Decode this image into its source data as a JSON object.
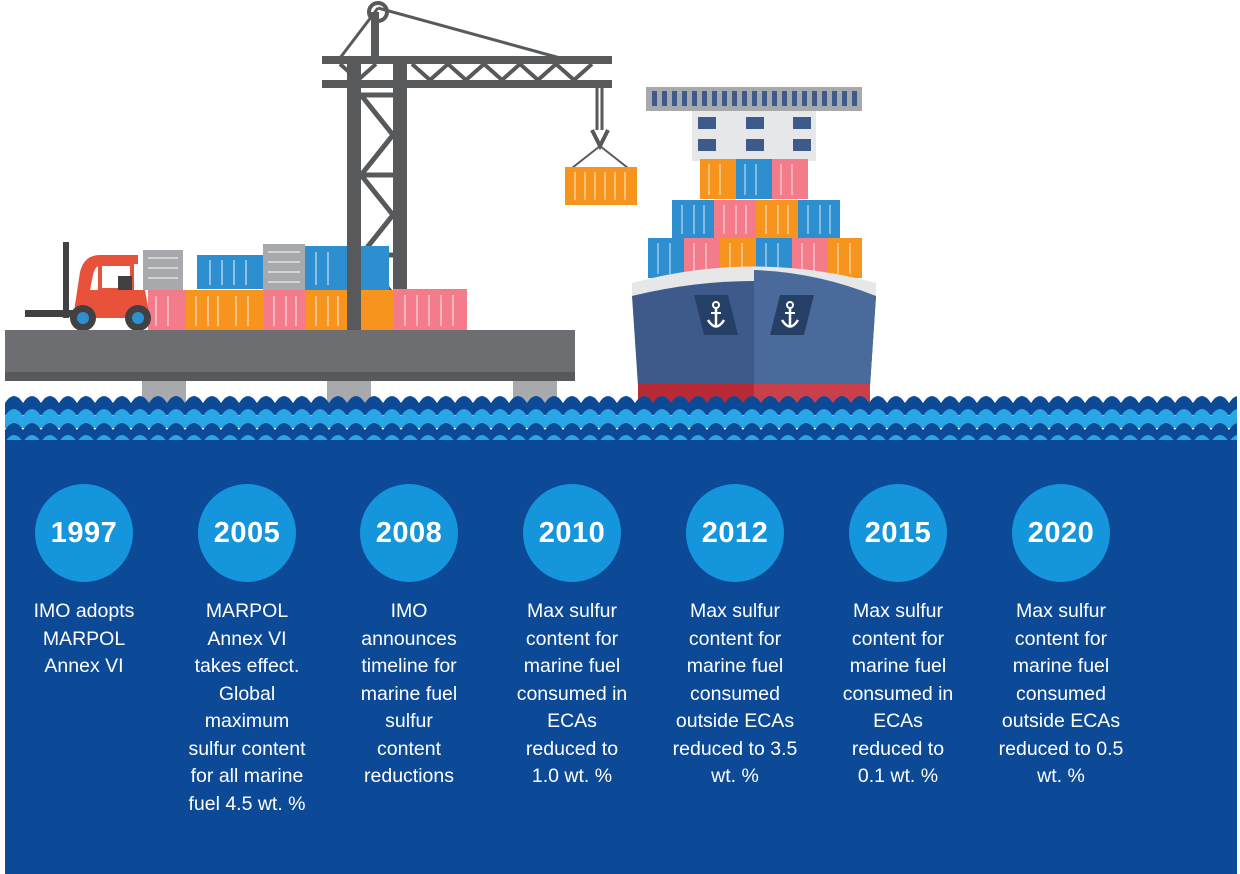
{
  "timeline": [
    {
      "year": "1997",
      "text": "IMO adopts MARPOL Annex VI"
    },
    {
      "year": "2005",
      "text": "MARPOL Annex VI takes effect. Global maximum sulfur content for all marine fuel 4.5 wt. %"
    },
    {
      "year": "2008",
      "text": "IMO announces timeline for marine fuel sulfur content reductions"
    },
    {
      "year": "2010",
      "text": "Max sulfur content for marine fuel consumed in ECAs reduced to 1.0 wt. %"
    },
    {
      "year": "2012",
      "text": "Max sulfur content for marine fuel consumed outside ECAs reduced to 3.5 wt. %"
    },
    {
      "year": "2015",
      "text": "Max sulfur content for marine fuel consumed in ECAs reduced to 0.1 wt. %"
    },
    {
      "year": "2020",
      "text": "Max sulfur content for marine fuel consumed outside ECAs reduced to 0.5 wt. %"
    }
  ],
  "colors": {
    "sea": "#0c4a98",
    "wave_light": "#29a6e6",
    "circle": "#1495dc",
    "crane": "#58595b",
    "hull": "#3d5a8a",
    "hull_bottom": "#b82a36",
    "dock": "#6d6e71"
  }
}
